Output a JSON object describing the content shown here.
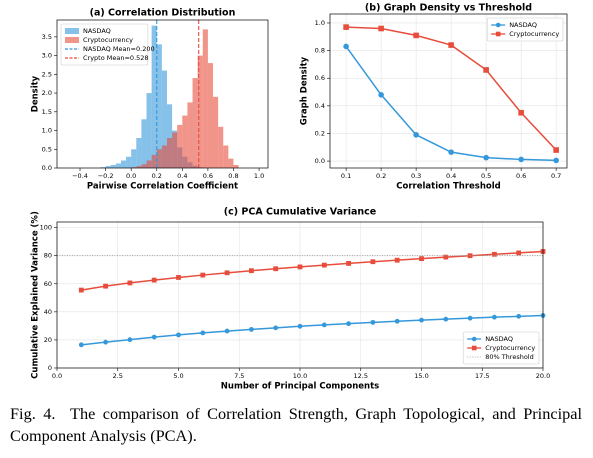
{
  "chart_data": [
    {
      "type": "histogram",
      "title": "(a) Correlation Distribution",
      "xlabel": "Pairwise Correlation Coefficient",
      "ylabel": "Density",
      "xlim": [
        -0.58,
        1.07
      ],
      "ylim": [
        0,
        3.95
      ],
      "xticks": [
        {
          "value": -0.4,
          "label": "−0.4"
        },
        {
          "value": -0.2,
          "label": "−0.2"
        },
        {
          "value": 0,
          "label": "0.0"
        },
        0.2,
        0.4,
        0.6,
        0.8,
        {
          "value": 1,
          "label": "1.0"
        }
      ],
      "yticks": [
        {
          "value": 0,
          "label": "0.0"
        },
        0.5,
        {
          "value": 1,
          "label": "1.0"
        },
        1.5,
        {
          "value": 2,
          "label": "2.0"
        },
        2.5,
        {
          "value": 3,
          "label": "3.0"
        },
        3.5
      ],
      "grid": false,
      "legend": "upper left",
      "alpha": 0.6,
      "series": [
        {
          "name": "NASDAQ",
          "color": "#3498db",
          "bins": [
            -0.24,
            -0.2,
            -0.16,
            -0.12,
            -0.08,
            -0.04,
            0,
            0.04,
            0.08,
            0.12,
            0.16,
            0.2,
            0.24,
            0.28,
            0.32,
            0.36,
            0.4,
            0.44,
            0.48,
            0.52,
            0.56
          ],
          "values": [
            0.02,
            0.05,
            0.08,
            0.12,
            0.2,
            0.3,
            0.5,
            0.8,
            1.3,
            2.0,
            3.8,
            3.3,
            2.6,
            1.7,
            1.0,
            0.55,
            0.3,
            0.15,
            0.06,
            0.02
          ]
        },
        {
          "name": "Cryptocurrency",
          "color": "#e74c3c",
          "bins": [
            0,
            0.04,
            0.08,
            0.12,
            0.16,
            0.2,
            0.24,
            0.28,
            0.32,
            0.36,
            0.4,
            0.44,
            0.48,
            0.52,
            0.56,
            0.6,
            0.64,
            0.68,
            0.72,
            0.76,
            0.8,
            0.84
          ],
          "values": [
            0.02,
            0.05,
            0.1,
            0.2,
            0.35,
            0.5,
            0.6,
            0.8,
            0.95,
            1.15,
            1.4,
            1.75,
            2.4,
            3.0,
            3.7,
            2.8,
            1.9,
            1.1,
            0.6,
            0.25,
            0.08
          ]
        }
      ],
      "vlines": [
        {
          "name": "NASDAQ Mean=0.200",
          "value": 0.2,
          "color": "#3498db"
        },
        {
          "name": "Crypto Mean=0.528",
          "value": 0.528,
          "color": "#e74c3c"
        }
      ]
    },
    {
      "type": "line",
      "title": "(b) Graph Density vs Threshold",
      "xlabel": "Correlation Threshold",
      "ylabel": "Graph Density",
      "xlim": [
        0.054,
        0.731
      ],
      "ylim": [
        -0.05,
        1.065
      ],
      "xticks": [
        0.1,
        0.2,
        0.3,
        0.4,
        0.5,
        0.6,
        0.7
      ],
      "yticks": [
        {
          "value": 0,
          "label": "0.0"
        },
        0.2,
        0.4,
        0.6,
        0.8,
        {
          "value": 1,
          "label": "1.0"
        }
      ],
      "grid": true,
      "legend": "upper right",
      "x": [
        0.1,
        0.2,
        0.3,
        0.4,
        0.5,
        0.6,
        0.7
      ],
      "series": [
        {
          "name": "NASDAQ",
          "color": "#3498db",
          "marker": "circle",
          "values": [
            0.83,
            0.48,
            0.19,
            0.065,
            0.025,
            0.012,
            0.005
          ]
        },
        {
          "name": "Cryptocurrency",
          "color": "#e74c3c",
          "marker": "square",
          "values": [
            0.97,
            0.96,
            0.91,
            0.84,
            0.66,
            0.35,
            0.08
          ]
        }
      ]
    },
    {
      "type": "line",
      "title": "(c) PCA Cumulative Variance",
      "xlabel": "Number of Principal Components",
      "ylabel": "Cumulative Explained Variance (%)",
      "xlim": [
        0,
        20
      ],
      "ylim": [
        0,
        104
      ],
      "xticks": [
        {
          "value": 0,
          "label": "0.0"
        },
        2.5,
        {
          "value": 5,
          "label": "5.0"
        },
        7.5,
        {
          "value": 10,
          "label": "10.0"
        },
        12.5,
        {
          "value": 15,
          "label": "15.0"
        },
        17.5,
        {
          "value": 20,
          "label": "20.0"
        }
      ],
      "yticks": [
        0,
        20,
        40,
        60,
        80,
        100
      ],
      "grid": true,
      "legend": "lower right",
      "x": [
        1,
        2,
        3,
        4,
        5,
        6,
        7,
        8,
        9,
        10,
        11,
        12,
        13,
        14,
        15,
        16,
        17,
        18,
        19,
        20
      ],
      "series": [
        {
          "name": "NASDAQ",
          "color": "#3498db",
          "marker": "circle",
          "values": [
            16.5,
            18.4,
            20.2,
            22,
            23.6,
            25,
            26.3,
            27.5,
            28.6,
            29.7,
            30.7,
            31.6,
            32.5,
            33.3,
            34.1,
            34.8,
            35.5,
            36.2,
            36.8,
            37.4
          ]
        },
        {
          "name": "Cryptocurrency",
          "color": "#e74c3c",
          "marker": "square",
          "values": [
            55.5,
            58.3,
            60.6,
            62.6,
            64.5,
            66.2,
            67.8,
            69.3,
            70.7,
            72,
            73.3,
            74.5,
            75.7,
            76.8,
            77.9,
            79,
            80,
            81,
            82,
            83
          ]
        }
      ],
      "hlines": [
        {
          "name": "80% Threshold",
          "value": 80,
          "color": "#999999"
        }
      ]
    }
  ],
  "caption": "Fig. 4.  The comparison of Correlation Strength, Graph Topological, and Principal Component Analysis (PCA)."
}
